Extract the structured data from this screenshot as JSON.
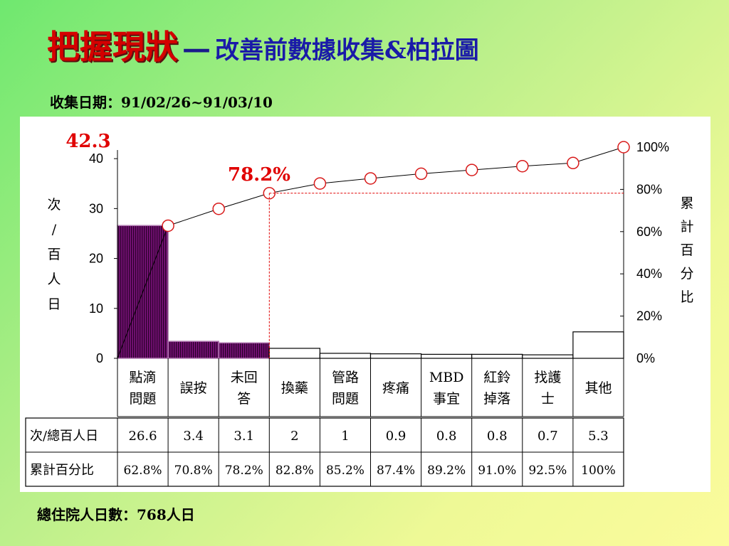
{
  "header": {
    "title_main": "把握現狀",
    "title_sep": "—",
    "title_sub": "改善前數據收集&柏拉圖"
  },
  "date_line": "收集日期：91/02/26~91/03/10",
  "footer": "總住院人日數：768人日",
  "colors": {
    "bar_main": "#8b1a8b",
    "line_point_border": "#d81a1a",
    "annotation": "#e00000",
    "guide": "#e00000"
  },
  "chart_data": {
    "type": "bar",
    "categories": [
      [
        "點滴",
        "問題"
      ],
      [
        "誤按"
      ],
      [
        "未回",
        "答"
      ],
      [
        "換藥"
      ],
      [
        "管路",
        "問題"
      ],
      [
        "疼痛"
      ],
      [
        "MBD",
        "事宜"
      ],
      [
        "紅鈴",
        "掉落"
      ],
      [
        "找護",
        "士"
      ],
      [
        "其他"
      ]
    ],
    "values": [
      26.6,
      3.4,
      3.1,
      2,
      1,
      0.9,
      0.8,
      0.8,
      0.7,
      5.3
    ],
    "cumulative": [
      62.8,
      70.8,
      78.2,
      82.8,
      85.2,
      87.4,
      89.2,
      91.0,
      92.5,
      100
    ],
    "highlighted_bars": 3,
    "ylabel": [
      "次",
      "/",
      "百",
      "人",
      "日"
    ],
    "y2label": [
      "累",
      "計",
      "百",
      "分",
      "比"
    ],
    "yticks": [
      0,
      10,
      20,
      30,
      40
    ],
    "y2ticks": [
      "0%",
      "20%",
      "40%",
      "60%",
      "80%",
      "100%"
    ],
    "ylim": [
      0,
      42.3
    ],
    "y2lim": [
      0,
      100
    ],
    "ymax_label": "42.3",
    "cutoff_label": "78.2%",
    "table": {
      "row_labels": [
        "次/總百人日",
        "累計百分比"
      ],
      "values_row": [
        "26.6",
        "3.4",
        "3.1",
        "2",
        "1",
        "0.9",
        "0.8",
        "0.8",
        "0.7",
        "5.3"
      ],
      "cumulative_row": [
        "62.8%",
        "70.8%",
        "78.2%",
        "82.8%",
        "85.2%",
        "87.4%",
        "89.2%",
        "91.0%",
        "92.5%",
        "100%"
      ]
    }
  }
}
